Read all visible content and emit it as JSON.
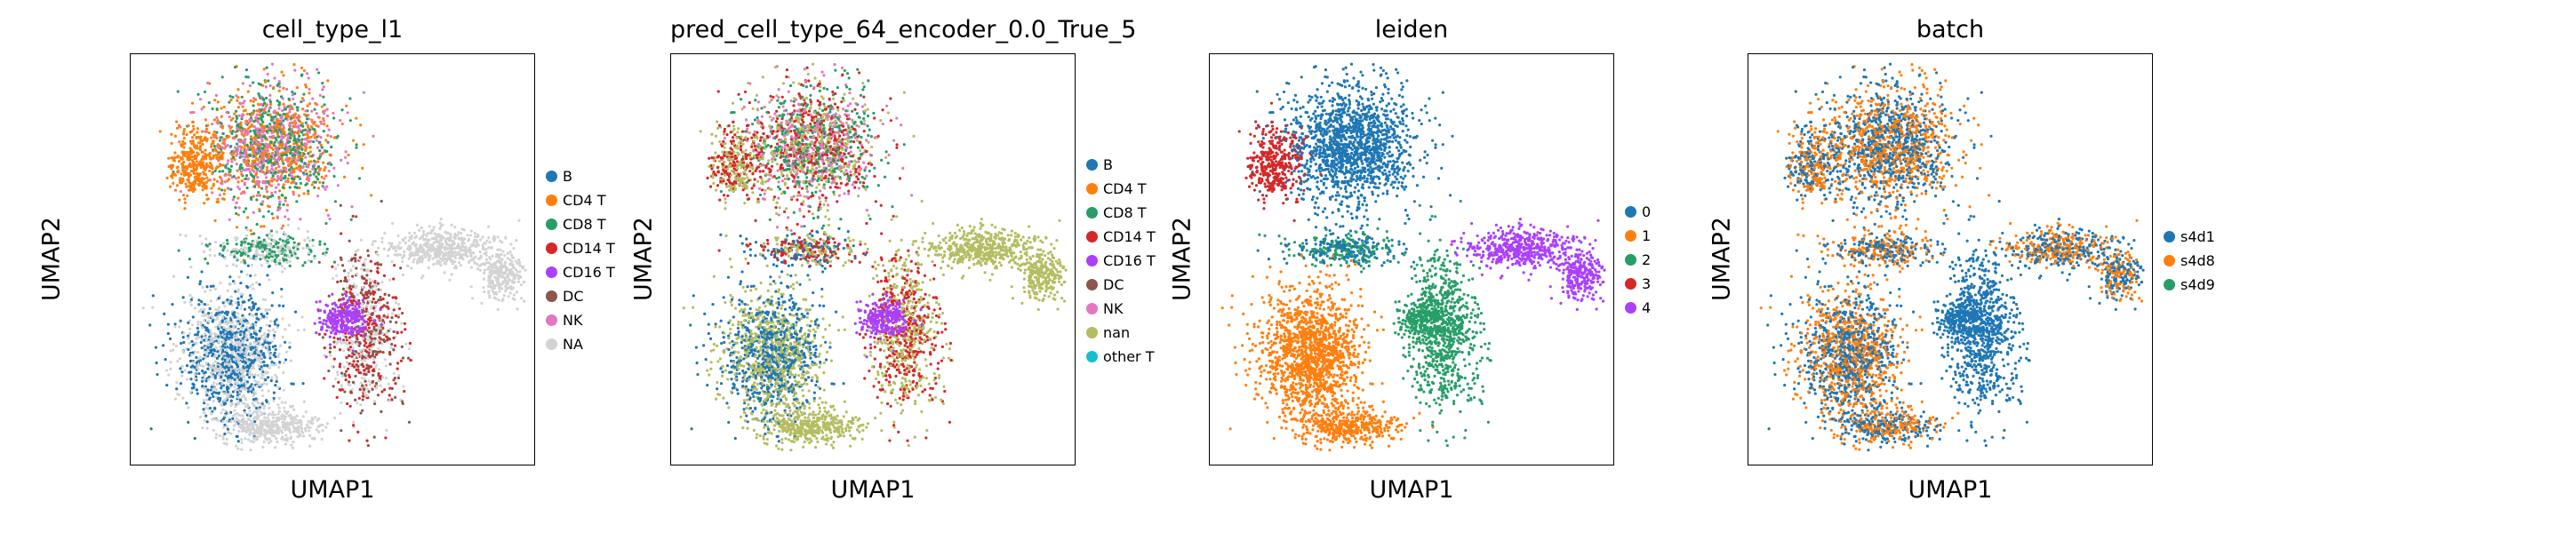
{
  "chart_data": [
    {
      "type": "scatter",
      "title": "cell_type_l1",
      "xlabel": "UMAP1",
      "ylabel": "UMAP2",
      "legend_position": "right",
      "categories": [
        "B",
        "CD4 T",
        "CD8 T",
        "CD14 T",
        "CD16 T",
        "DC",
        "NK",
        "NA"
      ],
      "colors": [
        "#1f77b4",
        "#ff7f0e",
        "#279e68",
        "#d62728",
        "#aa40fc",
        "#8c564b",
        "#e377c2",
        "#d3d3d3"
      ]
    },
    {
      "type": "scatter",
      "title": "pred_cell_type_64_encoder_0.0_True_5",
      "xlabel": "UMAP1",
      "ylabel": "UMAP2",
      "legend_position": "right",
      "categories": [
        "B",
        "CD4 T",
        "CD8 T",
        "CD14 T",
        "CD16 T",
        "DC",
        "NK",
        "nan",
        "other T"
      ],
      "colors": [
        "#1f77b4",
        "#ff7f0e",
        "#279e68",
        "#d62728",
        "#aa40fc",
        "#8c564b",
        "#e377c2",
        "#b5bd61",
        "#17becf"
      ]
    },
    {
      "type": "scatter",
      "title": "leiden",
      "xlabel": "UMAP1",
      "ylabel": "UMAP2",
      "legend_position": "right",
      "categories": [
        "0",
        "1",
        "2",
        "3",
        "4"
      ],
      "colors": [
        "#1f77b4",
        "#ff7f0e",
        "#279e68",
        "#d62728",
        "#aa40fc"
      ]
    },
    {
      "type": "scatter",
      "title": "batch",
      "xlabel": "UMAP1",
      "ylabel": "UMAP2",
      "legend_position": "right",
      "categories": [
        "s4d1",
        "s4d8",
        "s4d9"
      ],
      "colors": [
        "#1f77b4",
        "#ff7f0e",
        "#279e68"
      ]
    }
  ]
}
